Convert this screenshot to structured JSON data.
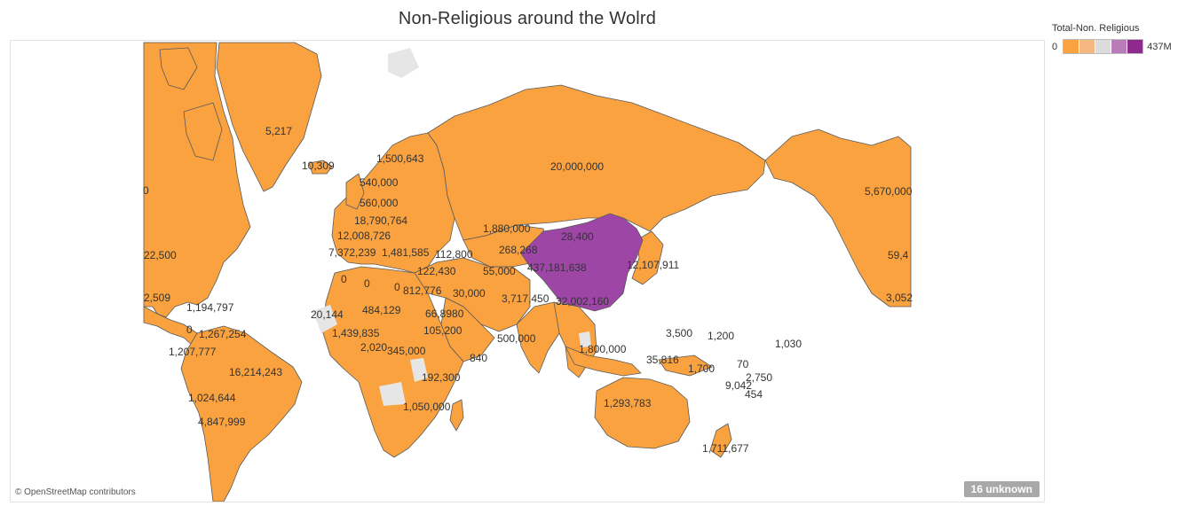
{
  "title": "Non-Religious around the Wolrd",
  "legend": {
    "title": "Total-Non. Religious",
    "min_label": "0",
    "max_label": "437M",
    "colors": [
      "#f9a23f",
      "#f5b880",
      "#dcdcdc",
      "#b87cb9",
      "#8e2a8e"
    ]
  },
  "map": {
    "land_color": "#f9a23f",
    "border_color": "#5a5a5a",
    "no_data_color": "#e6e6e6",
    "china_color": "#9d46a6",
    "attribution": "© OpenStreetMap contributors",
    "unknown_badge": "16 unknown",
    "labels": [
      {
        "region": "greenland",
        "text": "5,217"
      },
      {
        "region": "iceland",
        "text": "10,309"
      },
      {
        "region": "canada-east",
        "text": "0"
      },
      {
        "region": "usa-east",
        "text": "22,500"
      },
      {
        "region": "mexico-east",
        "text": "2,509"
      },
      {
        "region": "central-america",
        "text": "1,194,797"
      },
      {
        "region": "caribbean",
        "text": "0"
      },
      {
        "region": "venezuela-colombia",
        "text": "1,267,254"
      },
      {
        "region": "ecuador-peru",
        "text": "1,207,777"
      },
      {
        "region": "brazil",
        "text": "16,214,243"
      },
      {
        "region": "bolivia",
        "text": "1,024,644"
      },
      {
        "region": "argentina",
        "text": "4,847,999"
      },
      {
        "region": "scandinavia",
        "text": "1,500,643"
      },
      {
        "region": "uk",
        "text": "540,000"
      },
      {
        "region": "benelux",
        "text": "560,000"
      },
      {
        "region": "germany",
        "text": "18,790,764"
      },
      {
        "region": "central-europe",
        "text": "12,008,726"
      },
      {
        "region": "spain",
        "text": "7,372,239"
      },
      {
        "region": "italy",
        "text": "1,481,585"
      },
      {
        "region": "russia",
        "text": "20,000,000"
      },
      {
        "region": "kazakhstan",
        "text": "1,880,000"
      },
      {
        "region": "mongolia",
        "text": "28,400"
      },
      {
        "region": "central-asia",
        "text": "268,268"
      },
      {
        "region": "turkey",
        "text": "112,800"
      },
      {
        "region": "middle-east",
        "text": "122,430"
      },
      {
        "region": "iran-afghanistan",
        "text": "55,000"
      },
      {
        "region": "arabia",
        "text": "30,000"
      },
      {
        "region": "china",
        "text": "437,181,638"
      },
      {
        "region": "japan-korea",
        "text": "12,107,911"
      },
      {
        "region": "india",
        "text": "3,717,450"
      },
      {
        "region": "se-asia",
        "text": "32,002,160"
      },
      {
        "region": "morocco",
        "text": "0"
      },
      {
        "region": "algeria",
        "text": "0"
      },
      {
        "region": "libya",
        "text": "0"
      },
      {
        "region": "egypt",
        "text": "812,776"
      },
      {
        "region": "mali",
        "text": "484,129"
      },
      {
        "region": "senegal",
        "text": "20,144"
      },
      {
        "region": "nigeria",
        "text": "1,439,835"
      },
      {
        "region": "sudan-ethiopia",
        "text": "66,8980"
      },
      {
        "region": "east-africa",
        "text": "105,200"
      },
      {
        "region": "gulf-of-guinea",
        "text": "2,020"
      },
      {
        "region": "congo",
        "text": "345,000"
      },
      {
        "region": "somalia",
        "text": "840"
      },
      {
        "region": "tanzania-mozambique",
        "text": "192,300"
      },
      {
        "region": "south-africa",
        "text": "1,050,000"
      },
      {
        "region": "indian-ocean",
        "text": "500,000"
      },
      {
        "region": "indonesia",
        "text": "1,800,000"
      },
      {
        "region": "micronesia",
        "text": "3,500"
      },
      {
        "region": "micronesia-east",
        "text": "1,200"
      },
      {
        "region": "kiribati",
        "text": "1,030"
      },
      {
        "region": "png",
        "text": "35,816"
      },
      {
        "region": "solomon",
        "text": "1,700"
      },
      {
        "region": "tuvalu",
        "text": "70"
      },
      {
        "region": "samoa",
        "text": "2,750"
      },
      {
        "region": "fiji",
        "text": "9,042"
      },
      {
        "region": "tonga",
        "text": "454"
      },
      {
        "region": "australia",
        "text": "1,293,783"
      },
      {
        "region": "new-zealand",
        "text": "1,711,677"
      },
      {
        "region": "alaska",
        "text": "5,670,000"
      },
      {
        "region": "usa-west",
        "text": "59,4"
      },
      {
        "region": "mexico-west",
        "text": "3,052"
      }
    ]
  }
}
